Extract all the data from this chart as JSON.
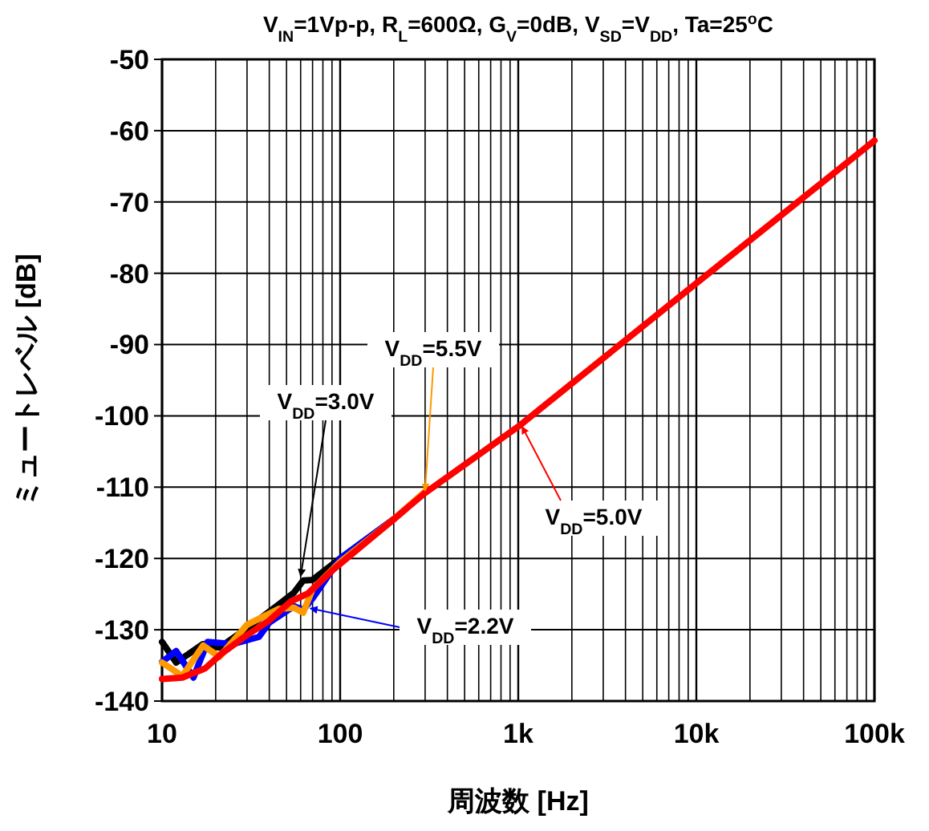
{
  "chart_data": {
    "type": "line",
    "title": "V$_{IN}$=1Vp-p, R$_{L}$=600Ω, G$_{V}$=0dB, V$_{SD}$=V$_{DD}$, Ta=25$^{o}$C",
    "xlabel": "周波数 [Hz]",
    "ylabel": "ミュートレベル [dB]",
    "log": "x",
    "grid": true,
    "marker": "none",
    "line_style": "solid",
    "xlim": [
      10,
      100000
    ],
    "ylim": [
      -140,
      -50
    ],
    "xticks": [
      {
        "value": 10,
        "label": "10"
      },
      {
        "value": 20,
        "label": null
      },
      {
        "value": 30,
        "label": null
      },
      {
        "value": 40,
        "label": null
      },
      {
        "value": 50,
        "label": null
      },
      {
        "value": 60,
        "label": null
      },
      {
        "value": 70,
        "label": null
      },
      {
        "value": 80,
        "label": null
      },
      {
        "value": 90,
        "label": null
      },
      {
        "value": 100,
        "label": "100"
      },
      {
        "value": 200,
        "label": null
      },
      {
        "value": 300,
        "label": null
      },
      {
        "value": 400,
        "label": null
      },
      {
        "value": 500,
        "label": null
      },
      {
        "value": 600,
        "label": null
      },
      {
        "value": 700,
        "label": null
      },
      {
        "value": 800,
        "label": null
      },
      {
        "value": 900,
        "label": null
      },
      {
        "value": 1000,
        "label": "1k"
      },
      {
        "value": 2000,
        "label": null
      },
      {
        "value": 3000,
        "label": null
      },
      {
        "value": 4000,
        "label": null
      },
      {
        "value": 5000,
        "label": null
      },
      {
        "value": 6000,
        "label": null
      },
      {
        "value": 7000,
        "label": null
      },
      {
        "value": 8000,
        "label": null
      },
      {
        "value": 9000,
        "label": null
      },
      {
        "value": 10000,
        "label": "10k"
      },
      {
        "value": 20000,
        "label": null
      },
      {
        "value": 30000,
        "label": null
      },
      {
        "value": 40000,
        "label": null
      },
      {
        "value": 50000,
        "label": null
      },
      {
        "value": 60000,
        "label": null
      },
      {
        "value": 70000,
        "label": null
      },
      {
        "value": 80000,
        "label": null
      },
      {
        "value": 90000,
        "label": null
      },
      {
        "value": 100000,
        "label": "100k"
      }
    ],
    "yticks": [
      -140,
      -130,
      -120,
      -110,
      -100,
      -90,
      -80,
      -70,
      -60,
      -50
    ],
    "series": [
      {
        "color": "#000000",
        "x": [
          10,
          12,
          17,
          21,
          30,
          45,
          55,
          62,
          70,
          100,
          200
        ],
        "values": [
          -131.7,
          -134.6,
          -132,
          -132.5,
          -129.8,
          -126.5,
          -124.8,
          -123.1,
          -123,
          -120,
          -114.5
        ]
      },
      {
        "color": "#0000ff",
        "x": [
          10,
          12,
          15,
          18,
          25,
          35,
          40,
          55,
          62,
          70,
          100,
          200
        ],
        "values": [
          -134.5,
          -133,
          -136.7,
          -131.7,
          -132,
          -131,
          -129,
          -126.7,
          -127.2,
          -125.6,
          -120,
          -114.5
        ]
      },
      {
        "color": "#ff9900",
        "x": [
          10,
          13,
          17,
          21,
          30,
          45,
          55,
          62,
          70,
          100,
          200,
          300
        ],
        "values": [
          -134.6,
          -136.5,
          -132.2,
          -133.8,
          -129.3,
          -127.1,
          -126.9,
          -127.6,
          -124.3,
          -120.5,
          -114.5,
          -110.6
        ]
      },
      {
        "color": "#ff0000",
        "x": [
          10,
          13,
          17.5,
          21.5,
          29,
          40,
          53,
          66,
          92,
          200,
          300,
          1000,
          10000,
          100000
        ],
        "values": [
          -136.9,
          -136.7,
          -135.4,
          -133.4,
          -131,
          -128.7,
          -126,
          -124.9,
          -121.5,
          -114.5,
          -110.8,
          -101.5,
          -81.4,
          -61.4
        ]
      }
    ],
    "annotations": [
      {
        "text": "V$_{DD}$=3.0V",
        "x": 60,
        "y": -122.5
      },
      {
        "text": "V$_{DD}$=2.2V",
        "x": 68,
        "y": -127
      },
      {
        "text": "V$_{DD}$=5.5V",
        "x": 300,
        "y": -110.5
      },
      {
        "text": "V$_{DD}$=5.0V",
        "x": 1050,
        "y": -101.5
      }
    ]
  }
}
